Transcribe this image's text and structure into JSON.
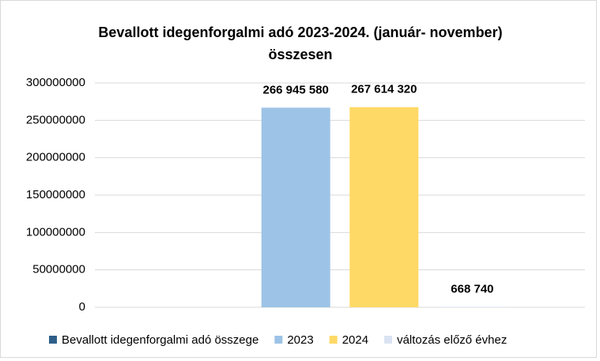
{
  "chart_data": {
    "type": "bar",
    "title": [
      "Bevallott idegenforgalmi adó 2023-2024. (január- november)",
      "összesen"
    ],
    "categories": [
      null
    ],
    "series": [
      {
        "name": "Bevallott idegenforgalmi adó összege",
        "color": "#2e5f8a",
        "values": [
          null
        ]
      },
      {
        "name": "2023",
        "color": "#9dc3e6",
        "values": [
          266945580
        ],
        "value_labels": [
          "266 945 580"
        ]
      },
      {
        "name": "2024",
        "color": "#ffd966",
        "values": [
          267614320
        ],
        "value_labels": [
          "267 614 320"
        ]
      },
      {
        "name": "változás előző évhez",
        "color": "#dae3f3",
        "values": [
          668740
        ],
        "value_labels": [
          "668 740"
        ]
      }
    ],
    "ylim": [
      0,
      300000000
    ],
    "yticks": [
      0,
      50000000,
      100000000,
      150000000,
      200000000,
      250000000,
      300000000
    ],
    "grid": true,
    "legend": "bottom"
  }
}
